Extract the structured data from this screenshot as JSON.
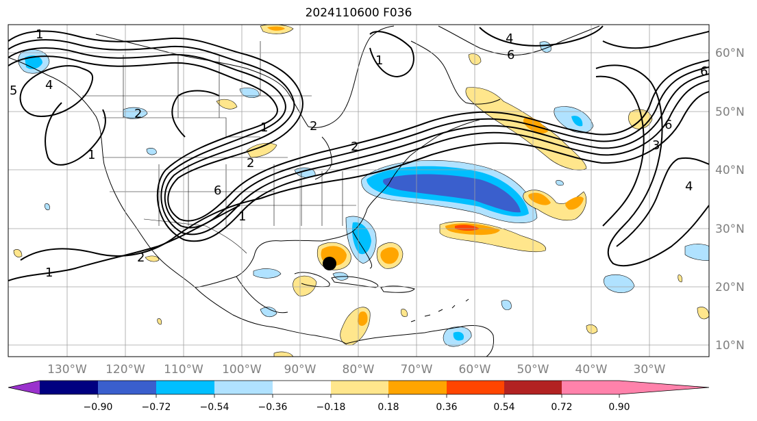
{
  "title": "2024110600 F036",
  "map": {
    "lon_ticks": [
      {
        "label": "130°W",
        "value": -130
      },
      {
        "label": "120°W",
        "value": -120
      },
      {
        "label": "110°W",
        "value": -110
      },
      {
        "label": "100°W",
        "value": -100
      },
      {
        "label": "90°W",
        "value": -90
      },
      {
        "label": "80°W",
        "value": -80
      },
      {
        "label": "70°W",
        "value": -70
      },
      {
        "label": "60°W",
        "value": -60
      },
      {
        "label": "50°W",
        "value": -50
      },
      {
        "label": "40°W",
        "value": -40
      },
      {
        "label": "30°W",
        "value": -30
      }
    ],
    "lat_ticks": [
      {
        "label": "60°N",
        "value": 60
      },
      {
        "label": "50°N",
        "value": 50
      },
      {
        "label": "40°N",
        "value": 40
      },
      {
        "label": "30°N",
        "value": 30
      },
      {
        "label": "20°N",
        "value": 20
      },
      {
        "label": "10°N",
        "value": 10
      }
    ],
    "contour_labels": [
      "1",
      "2",
      "4",
      "6",
      "5",
      "4",
      "1",
      "1",
      "2",
      "6",
      "1",
      "2",
      "1",
      "6",
      "6",
      "4",
      "2",
      "3",
      "1",
      "2"
    ],
    "storm_marker": {
      "lon": -84.5,
      "lat": 24.0
    }
  },
  "colorbar": {
    "ticks": [
      "−0.90",
      "−0.72",
      "−0.54",
      "−0.36",
      "−0.18",
      "0.18",
      "0.36",
      "0.54",
      "0.72",
      "0.90"
    ],
    "colors": [
      "#9a32cd",
      "#000080",
      "#3a5fcd",
      "#00bfff",
      "#b0e2ff",
      "#ffffff",
      "#ffe68c",
      "#ffa500",
      "#ff4500",
      "#b22222",
      "#ff82ab"
    ]
  }
}
